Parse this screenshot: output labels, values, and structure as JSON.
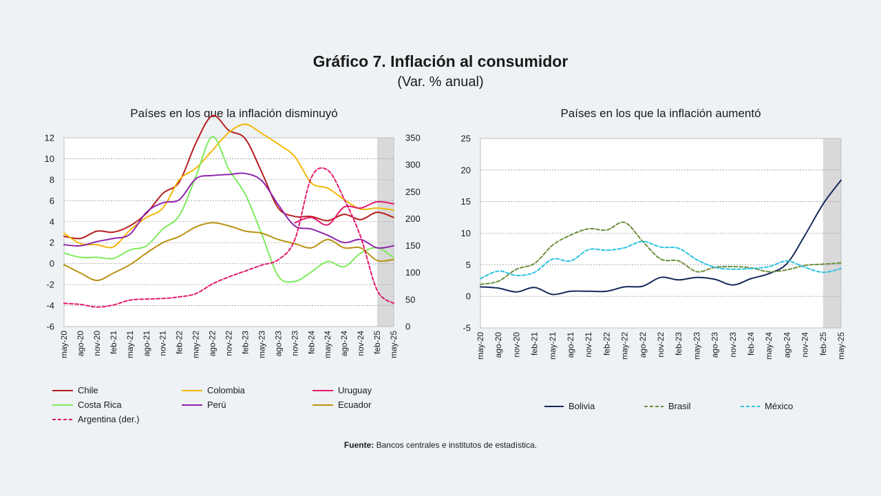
{
  "title": "Gráfico 7. Inflación al consumidor",
  "subtitle": "(Var. % anual)",
  "source_label": "Fuente:",
  "source_text": "Bancos centrales e institutos de estadística.",
  "chart_data": [
    {
      "type": "line",
      "title": "Países en los que la inflación disminuyó",
      "x": [
        "may-20",
        "ago-20",
        "nov-20",
        "feb-21",
        "may-21",
        "ago-21",
        "nov-21",
        "feb-22",
        "may-22",
        "ago-22",
        "nov-22",
        "feb-23",
        "may-23",
        "ago-23",
        "nov-23",
        "feb-24",
        "may-24",
        "ago-24",
        "nov-24",
        "feb-25",
        "may-25"
      ],
      "ylim": [
        -6,
        12
      ],
      "yticks": [
        -6,
        -4,
        -2,
        0,
        2,
        4,
        6,
        8,
        10,
        12
      ],
      "y2lim": [
        0,
        350
      ],
      "y2ticks": [
        0,
        50,
        100,
        150,
        200,
        250,
        300,
        350
      ],
      "shaded_from": "feb-25",
      "grid": true,
      "legend_position": "bottom",
      "series": [
        {
          "name": "Chile",
          "color": "#B71C1C",
          "dash": false,
          "axis": "left",
          "values": [
            2.6,
            2.4,
            3.1,
            3.0,
            3.6,
            4.8,
            6.7,
            7.8,
            11.5,
            14.1,
            12.7,
            11.9,
            8.7,
            5.3,
            4.5,
            4.5,
            4.1,
            4.7,
            4.2,
            4.9,
            4.4
          ]
        },
        {
          "name": "Colombia",
          "color": "#F2B705",
          "dash": false,
          "axis": "left",
          "values": [
            2.9,
            1.9,
            1.8,
            1.6,
            3.2,
            4.4,
            5.3,
            8.0,
            9.1,
            10.8,
            12.5,
            13.3,
            12.4,
            11.4,
            10.2,
            7.7,
            7.2,
            6.1,
            5.2,
            5.3,
            5.1
          ]
        },
        {
          "name": "Uruguay",
          "color": "#E3186D",
          "dash": false,
          "axis": "left",
          "values": [
            null,
            null,
            null,
            null,
            null,
            null,
            null,
            null,
            null,
            null,
            null,
            null,
            null,
            null,
            3.9,
            4.4,
            3.7,
            5.4,
            5.3,
            5.9,
            5.7
          ]
        },
        {
          "name": "Costa Rica",
          "color": "#7CEB5B",
          "dash": false,
          "axis": "left",
          "values": [
            1.0,
            0.6,
            0.6,
            0.5,
            1.3,
            1.7,
            3.3,
            4.6,
            8.3,
            12.1,
            9.0,
            6.6,
            2.8,
            -1.2,
            -1.7,
            -0.8,
            0.2,
            -0.3,
            1.0,
            1.5,
            0.6
          ]
        },
        {
          "name": "Perú",
          "color": "#8E24AA",
          "dash": false,
          "axis": "left",
          "values": [
            1.8,
            1.7,
            2.1,
            2.4,
            2.8,
            4.9,
            5.8,
            6.1,
            8.1,
            8.4,
            8.5,
            8.6,
            7.9,
            5.6,
            3.6,
            3.3,
            2.7,
            2.0,
            2.3,
            1.5,
            1.7
          ]
        },
        {
          "name": "Ecuador",
          "color": "#B8900E",
          "dash": false,
          "axis": "left",
          "values": [
            -0.1,
            -0.9,
            -1.6,
            -0.9,
            -0.1,
            1.0,
            2.0,
            2.6,
            3.5,
            3.9,
            3.6,
            3.1,
            2.9,
            2.3,
            1.9,
            1.5,
            2.3,
            1.5,
            1.5,
            0.3,
            0.4
          ]
        },
        {
          "name": "Argentina (der.)",
          "color": "#E3186D",
          "dash": true,
          "axis": "right",
          "values": [
            43,
            41,
            36,
            40,
            49,
            51,
            52,
            55,
            61,
            79,
            92,
            103,
            114,
            124,
            161,
            276,
            290,
            236,
            166,
            67,
            43
          ]
        }
      ]
    },
    {
      "type": "line",
      "title": "Países en los que la inflación aumentó",
      "x": [
        "may-20",
        "ago-20",
        "nov-20",
        "feb-21",
        "may-21",
        "ago-21",
        "nov-21",
        "feb-22",
        "may-22",
        "ago-22",
        "nov-22",
        "feb-23",
        "may-23",
        "ago-23",
        "nov-23",
        "feb-24",
        "may-24",
        "ago-24",
        "nov-24",
        "feb-25",
        "may-25"
      ],
      "ylim": [
        -5,
        25
      ],
      "yticks": [
        -5,
        0,
        5,
        10,
        15,
        20,
        25
      ],
      "shaded_from": "feb-25",
      "grid": true,
      "legend_position": "bottom",
      "series": [
        {
          "name": "Bolivia",
          "color": "#14285A",
          "dash": false,
          "values": [
            1.5,
            1.3,
            0.7,
            1.4,
            0.3,
            0.8,
            0.8,
            0.8,
            1.5,
            1.6,
            3.0,
            2.6,
            3.0,
            2.7,
            1.8,
            2.8,
            3.6,
            5.2,
            9.7,
            14.6,
            18.4
          ]
        },
        {
          "name": "Brasil",
          "color": "#6B8E3A",
          "dash": true,
          "values": [
            1.9,
            2.4,
            4.3,
            5.2,
            8.1,
            9.7,
            10.7,
            10.5,
            11.7,
            8.7,
            5.9,
            5.6,
            3.9,
            4.6,
            4.7,
            4.5,
            3.9,
            4.2,
            4.9,
            5.1,
            5.3
          ]
        },
        {
          "name": "México",
          "color": "#29C3E0",
          "dash": true,
          "values": [
            2.8,
            4.0,
            3.3,
            3.8,
            5.9,
            5.6,
            7.4,
            7.3,
            7.7,
            8.7,
            7.8,
            7.6,
            5.8,
            4.6,
            4.3,
            4.4,
            4.7,
            5.6,
            4.6,
            3.8,
            4.4
          ]
        }
      ]
    }
  ]
}
